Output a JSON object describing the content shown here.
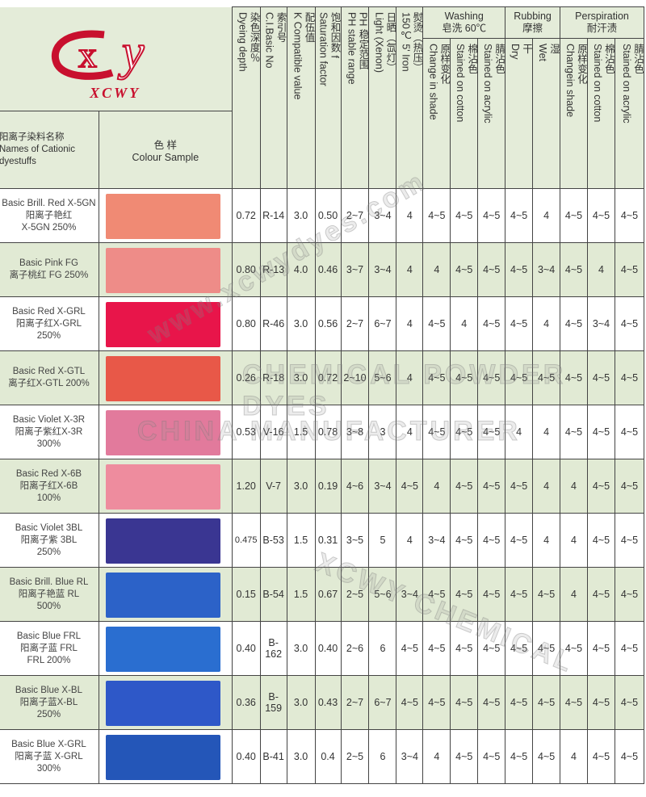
{
  "logo": {
    "mark": "CXY",
    "text": "XCWY",
    "color": "#c8102e"
  },
  "header": {
    "name_col": {
      "cn": "阳离子染料名称",
      "en1": "Names of Cationic",
      "en2": "dyestuffs"
    },
    "sample_col": {
      "cn": "色  样",
      "en": "Colour  Sample"
    },
    "depth": {
      "cn": "染色深度％",
      "en": "Dyeing depth"
    },
    "ci": {
      "cn": "索引号",
      "en": "C.I.Basic No"
    },
    "k": {
      "cn": "配伍值",
      "en": "K Compatible value"
    },
    "f": {
      "cn": "饱和因数 f",
      "en": "Saturation factor"
    },
    "ph": {
      "cn": "PH 稳定范围",
      "en": "PH stable range"
    },
    "light": {
      "cn": "日晒（氙灯）",
      "en": "Light (Xenon)"
    },
    "iron": {
      "cn": "熨烫（热压）",
      "en": "150℃  5' Iron"
    },
    "washing": {
      "en": "Washing",
      "cn": "皂洗 60℃"
    },
    "rubbing": {
      "en": "Rubbing",
      "cn": "摩擦"
    },
    "perspiration": {
      "en": "Perspiration",
      "cn": "耐汗渍"
    },
    "wash_change": {
      "cn": "原样变化",
      "en": "Change in shade"
    },
    "wash_cotton": {
      "cn": "棉沾色",
      "en": "Stained on cotton"
    },
    "wash_acrylic": {
      "cn": "腈沾色",
      "en": "Stained on acrylic"
    },
    "rub_dry": {
      "cn": "干",
      "en": "Dry"
    },
    "rub_wet": {
      "cn": "湿",
      "en": "Wet"
    },
    "persp_change": {
      "cn": "原样变化",
      "en": "Changein shade"
    },
    "persp_cotton": {
      "cn": "棉沾色",
      "en": "Stained on cotton"
    },
    "persp_acrylic": {
      "cn": "腈沾色",
      "en": "Stained on acrylic"
    }
  },
  "rows": [
    {
      "name": [
        "Basic Brill. Red X-5GN",
        "阳离子艳红",
        "X-5GN 250%"
      ],
      "color": "#f08a74",
      "values": [
        "0.72",
        "R-14",
        "3.0",
        "0.50",
        "2~7",
        "3~4",
        "4",
        "4~5",
        "4~5",
        "4~5",
        "4~5",
        "4",
        "4~5",
        "4~5",
        "4~5"
      ]
    },
    {
      "name": [
        "Basic Pink FG",
        "离子桃红 FG 250%"
      ],
      "color": "#ee8c88",
      "values": [
        "0.80",
        "R-13",
        "4.0",
        "0.46",
        "3~7",
        "3~4",
        "4",
        "4",
        "4~5",
        "4~5",
        "4~5",
        "3~4",
        "4~5",
        "4",
        "4~5"
      ]
    },
    {
      "name": [
        "Basic Red X-GRL",
        "阳离子红X-GRL",
        "250%"
      ],
      "color": "#e8154a",
      "values": [
        "0.80",
        "R-46",
        "3.0",
        "0.56",
        "2~7",
        "6~7",
        "4",
        "4~5",
        "4",
        "4~5",
        "4~5",
        "4",
        "4~5",
        "3~4",
        "4~5"
      ]
    },
    {
      "name": [
        "Basic Red X-GTL",
        "离子红X-GTL 200%"
      ],
      "color": "#e85848",
      "values": [
        "0.26",
        "R-18",
        "3.0",
        "0.72",
        "2~10",
        "5~6",
        "4",
        "4~5",
        "4~5",
        "4~5",
        "4~5",
        "4~5",
        "4~5",
        "4~5",
        "4~5"
      ]
    },
    {
      "name": [
        "Basic Violet X-3R",
        "阳离子紫红X-3R",
        "300%"
      ],
      "color": "#e27a9c",
      "values": [
        "0.53",
        "V-16",
        "1.5",
        "0.78",
        "3~8",
        "3",
        "4",
        "4~5",
        "4~5",
        "4~5",
        "4",
        "4",
        "4~5",
        "4~5",
        "4~5"
      ]
    },
    {
      "name": [
        "Basic Red X-6B",
        "阳离子红X-6B",
        "100%"
      ],
      "color": "#ee8c9e",
      "values": [
        "1.20",
        "V-7",
        "3.0",
        "0.19",
        "4~6",
        "3~4",
        "4~5",
        "4",
        "4~5",
        "4~5",
        "4~5",
        "4",
        "4",
        "4~5",
        "4~5"
      ]
    },
    {
      "name": [
        "Basic Violet 3BL",
        "阳离子紫 3BL",
        "250%"
      ],
      "color": "#3a3692",
      "values": [
        "0.475",
        "B-53",
        "1.5",
        "0.31",
        "3~5",
        "5",
        "4",
        "3~4",
        "4~5",
        "4~5",
        "4~5",
        "4",
        "4",
        "4~5",
        "4~5"
      ]
    },
    {
      "name": [
        "Basic Brill. Blue RL",
        "阳离子艳蓝 RL",
        "500%"
      ],
      "color": "#2c62c8",
      "values": [
        "0.15",
        "B-54",
        "1.5",
        "0.67",
        "2~5",
        "5~6",
        "3~4",
        "4~5",
        "4~5",
        "4~5",
        "4~5",
        "4~5",
        "4",
        "4~5",
        "4~5"
      ]
    },
    {
      "name": [
        "Basic Blue FRL",
        "阳离子蓝 FRL",
        "FRL   200%"
      ],
      "color": "#2a6ed0",
      "values": [
        "0.40",
        "B-162",
        "3.0",
        "0.40",
        "2~6",
        "6",
        "4~5",
        "4~5",
        "4~5",
        "4~5",
        "4~5",
        "4~5",
        "4~5",
        "4~5",
        "4~5"
      ]
    },
    {
      "name": [
        "Basic Blue X-BL",
        "阳离子蓝X-BL",
        "250%"
      ],
      "color": "#2e58c8",
      "values": [
        "0.36",
        "B-159",
        "3.0",
        "0.43",
        "2~7",
        "6~7",
        "4~5",
        "4~5",
        "4~5",
        "4~5",
        "4~5",
        "4~5",
        "4~5",
        "4~5",
        "4~5"
      ]
    },
    {
      "name": [
        "Basic Blue X-GRL",
        "阳离子蓝 X-GRL",
        "300%"
      ],
      "color": "#2456b8",
      "values": [
        "0.40",
        "B-41",
        "3.0",
        "0.4",
        "2~5",
        "6",
        "3~4",
        "4",
        "4~5",
        "4~5",
        "4~5",
        "4~5",
        "4",
        "4~5",
        "4~5"
      ]
    }
  ],
  "watermarks": [
    "www.xcwydyes.com",
    "CHEMICAL POWDER DYES",
    "CHINA MANUFACTURER",
    "XCWY CHEMICAL"
  ]
}
